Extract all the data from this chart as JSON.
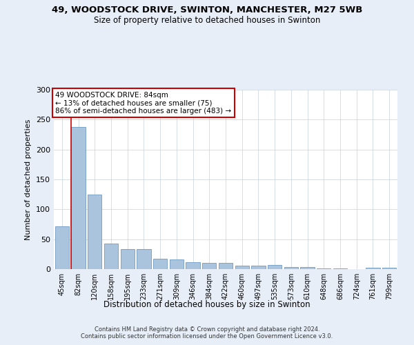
{
  "title_line1": "49, WOODSTOCK DRIVE, SWINTON, MANCHESTER, M27 5WB",
  "title_line2": "Size of property relative to detached houses in Swinton",
  "xlabel": "Distribution of detached houses by size in Swinton",
  "ylabel": "Number of detached properties",
  "categories": [
    "45sqm",
    "82sqm",
    "120sqm",
    "158sqm",
    "195sqm",
    "233sqm",
    "271sqm",
    "309sqm",
    "346sqm",
    "384sqm",
    "422sqm",
    "460sqm",
    "497sqm",
    "535sqm",
    "573sqm",
    "610sqm",
    "648sqm",
    "686sqm",
    "724sqm",
    "761sqm",
    "799sqm"
  ],
  "values": [
    72,
    238,
    125,
    43,
    33,
    33,
    17,
    16,
    11,
    10,
    10,
    6,
    6,
    7,
    4,
    3,
    1,
    1,
    0,
    2,
    2
  ],
  "bar_color": "#aac4de",
  "bar_edge_color": "#5b8db8",
  "highlight_bar_index": 1,
  "highlight_line_color": "#cc0000",
  "annotation_text": "49 WOODSTOCK DRIVE: 84sqm\n← 13% of detached houses are smaller (75)\n86% of semi-detached houses are larger (483) →",
  "annotation_box_color": "#ffffff",
  "annotation_box_edge_color": "#cc0000",
  "ylim": [
    0,
    300
  ],
  "yticks": [
    0,
    50,
    100,
    150,
    200,
    250,
    300
  ],
  "footer_line1": "Contains HM Land Registry data © Crown copyright and database right 2024.",
  "footer_line2": "Contains public sector information licensed under the Open Government Licence v3.0.",
  "background_color": "#e8eef8",
  "plot_background_color": "#ffffff",
  "grid_color": "#c8d0dc"
}
